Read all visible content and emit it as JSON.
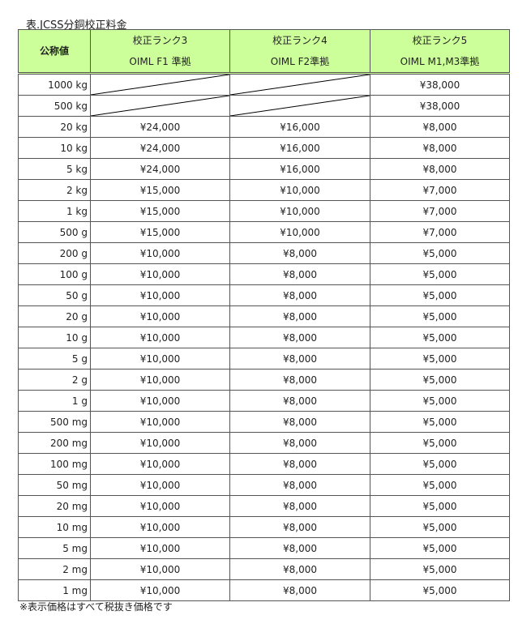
{
  "title": "表.JCSS分銅校正料金",
  "headers": {
    "nominal": "公称値",
    "cols": [
      {
        "l1": "校正ランク3",
        "l2": "OIML F1 準拠"
      },
      {
        "l1": "校正ランク4",
        "l2": "OIML F2準拠"
      },
      {
        "l1": "校正ランク5",
        "l2": "OIML M1,M3準拠"
      }
    ]
  },
  "rows": [
    {
      "w": "1000 kg",
      "p": [
        null,
        null,
        "¥38,000"
      ]
    },
    {
      "w": "500 kg",
      "p": [
        null,
        null,
        "¥38,000"
      ]
    },
    {
      "w": "20 kg",
      "p": [
        "¥24,000",
        "¥16,000",
        "¥8,000"
      ]
    },
    {
      "w": "10 kg",
      "p": [
        "¥24,000",
        "¥16,000",
        "¥8,000"
      ]
    },
    {
      "w": "5 kg",
      "p": [
        "¥24,000",
        "¥16,000",
        "¥8,000"
      ]
    },
    {
      "w": "2 kg",
      "p": [
        "¥15,000",
        "¥10,000",
        "¥7,000"
      ]
    },
    {
      "w": "1 kg",
      "p": [
        "¥15,000",
        "¥10,000",
        "¥7,000"
      ]
    },
    {
      "w": "500 g",
      "p": [
        "¥15,000",
        "¥10,000",
        "¥7,000"
      ]
    },
    {
      "w": "200 g",
      "p": [
        "¥10,000",
        "¥8,000",
        "¥5,000"
      ]
    },
    {
      "w": "100 g",
      "p": [
        "¥10,000",
        "¥8,000",
        "¥5,000"
      ]
    },
    {
      "w": "50 g",
      "p": [
        "¥10,000",
        "¥8,000",
        "¥5,000"
      ]
    },
    {
      "w": "20 g",
      "p": [
        "¥10,000",
        "¥8,000",
        "¥5,000"
      ]
    },
    {
      "w": "10 g",
      "p": [
        "¥10,000",
        "¥8,000",
        "¥5,000"
      ]
    },
    {
      "w": "5 g",
      "p": [
        "¥10,000",
        "¥8,000",
        "¥5,000"
      ]
    },
    {
      "w": "2 g",
      "p": [
        "¥10,000",
        "¥8,000",
        "¥5,000"
      ]
    },
    {
      "w": "1 g",
      "p": [
        "¥10,000",
        "¥8,000",
        "¥5,000"
      ]
    },
    {
      "w": "500 mg",
      "p": [
        "¥10,000",
        "¥8,000",
        "¥5,000"
      ]
    },
    {
      "w": "200 mg",
      "p": [
        "¥10,000",
        "¥8,000",
        "¥5,000"
      ]
    },
    {
      "w": "100 mg",
      "p": [
        "¥10,000",
        "¥8,000",
        "¥5,000"
      ]
    },
    {
      "w": "50 mg",
      "p": [
        "¥10,000",
        "¥8,000",
        "¥5,000"
      ]
    },
    {
      "w": "20 mg",
      "p": [
        "¥10,000",
        "¥8,000",
        "¥5,000"
      ]
    },
    {
      "w": "10 mg",
      "p": [
        "¥10,000",
        "¥8,000",
        "¥5,000"
      ]
    },
    {
      "w": "5 mg",
      "p": [
        "¥10,000",
        "¥8,000",
        "¥5,000"
      ]
    },
    {
      "w": "2 mg",
      "p": [
        "¥10,000",
        "¥8,000",
        "¥5,000"
      ]
    },
    {
      "w": "1 mg",
      "p": [
        "¥10,000",
        "¥8,000",
        "¥5,000"
      ]
    }
  ],
  "note": "※表示価格はすべて税抜き価格です",
  "colors": {
    "header_bg": "#ccff99"
  }
}
